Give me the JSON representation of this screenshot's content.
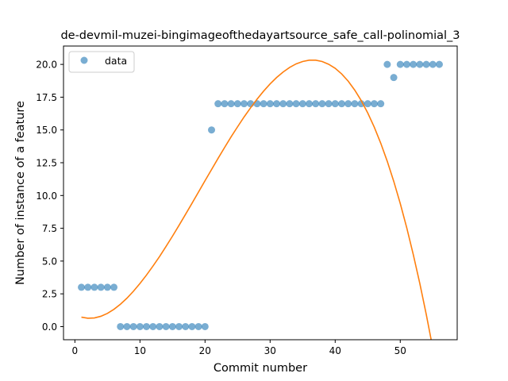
{
  "chart_data": {
    "type": "scatter",
    "title": "de-devmil-muzei-bingimageofthedayartsource_safe_call-polinomial_3",
    "xlabel": "Commit number",
    "ylabel": "Number of instance of a feature",
    "xlim": [
      -1.75,
      58.75
    ],
    "ylim": [
      -1.0,
      21.4
    ],
    "x_ticks": [
      0,
      10,
      20,
      30,
      40,
      50
    ],
    "x_tick_labels": [
      "0",
      "10",
      "20",
      "30",
      "40",
      "50"
    ],
    "y_ticks": [
      0,
      2.5,
      5,
      7.5,
      10,
      12.5,
      15,
      17.5,
      20
    ],
    "y_tick_labels": [
      "0.0",
      "2.5",
      "5.0",
      "7.5",
      "10.0",
      "12.5",
      "15.0",
      "17.5",
      "20.0"
    ],
    "grid": false,
    "legend": {
      "position": "top-left",
      "entries": [
        "data"
      ]
    },
    "series": [
      {
        "name": "data",
        "kind": "points",
        "color": "#1f77b4",
        "x": [
          1,
          2,
          3,
          4,
          5,
          6,
          7,
          8,
          9,
          10,
          11,
          12,
          13,
          14,
          15,
          16,
          17,
          18,
          19,
          20,
          21,
          22,
          23,
          24,
          25,
          26,
          27,
          28,
          29,
          30,
          31,
          32,
          33,
          34,
          35,
          36,
          37,
          38,
          39,
          40,
          41,
          42,
          43,
          44,
          45,
          46,
          47,
          48,
          49,
          50,
          51,
          52,
          53,
          54,
          55,
          56
        ],
        "y": [
          3,
          3,
          3,
          3,
          3,
          3,
          0,
          0,
          0,
          0,
          0,
          0,
          0,
          0,
          0,
          0,
          0,
          0,
          0,
          0,
          15,
          17,
          17,
          17,
          17,
          17,
          17,
          17,
          17,
          17,
          17,
          17,
          17,
          17,
          17,
          17,
          17,
          17,
          17,
          17,
          17,
          17,
          17,
          17,
          17,
          17,
          17,
          20,
          19,
          20,
          20,
          20,
          20,
          20,
          20,
          20
        ]
      },
      {
        "kind": "fit-curve",
        "color": "#ff7f0e",
        "x": [
          1,
          2,
          3,
          4,
          5,
          6,
          7,
          8,
          9,
          10,
          11,
          12,
          13,
          14,
          15,
          16,
          17,
          18,
          19,
          20,
          21,
          22,
          23,
          24,
          25,
          26,
          27,
          28,
          29,
          30,
          31,
          32,
          33,
          34,
          35,
          36,
          37,
          38,
          39,
          40,
          41,
          42,
          43,
          44,
          45,
          46,
          47,
          48,
          49,
          50,
          51,
          52,
          53,
          54,
          55,
          56
        ],
        "y": [
          0.72,
          0.64,
          0.66,
          0.79,
          1.01,
          1.32,
          1.71,
          2.17,
          2.7,
          3.29,
          3.93,
          4.62,
          5.34,
          6.11,
          6.9,
          7.72,
          8.56,
          9.41,
          10.27,
          11.13,
          11.98,
          12.83,
          13.66,
          14.47,
          15.24,
          15.99,
          16.69,
          17.35,
          17.96,
          18.51,
          19.0,
          19.42,
          19.77,
          20.04,
          20.22,
          20.32,
          20.32,
          20.22,
          20.01,
          19.7,
          19.27,
          18.72,
          18.04,
          17.24,
          16.3,
          15.22,
          13.99,
          12.61,
          11.08,
          9.39,
          7.53,
          5.5,
          3.3,
          0.92,
          -1.65,
          -4.41
        ]
      }
    ]
  }
}
